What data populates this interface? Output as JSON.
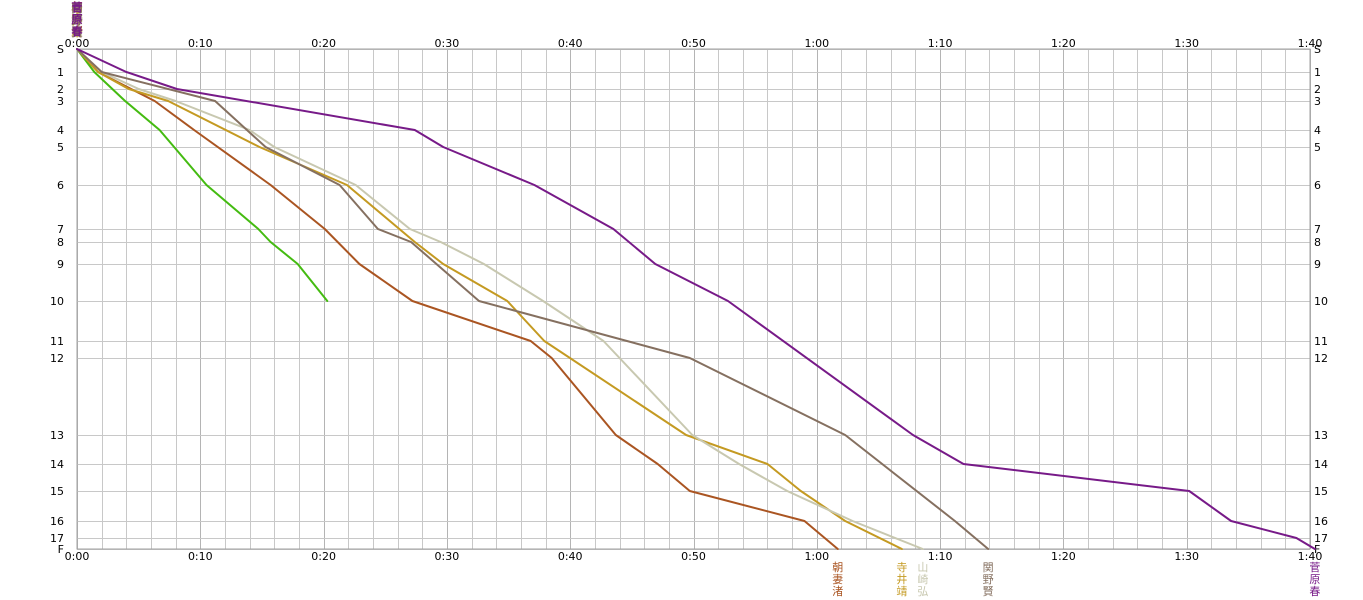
{
  "chart_data": {
    "type": "line",
    "title": "",
    "xlabel": "",
    "ylabel": "",
    "xlim": [
      0,
      100
    ],
    "ylim": [
      0,
      18
    ],
    "x_ticks": [
      {
        "v": 0,
        "label": "0:00"
      },
      {
        "v": 10,
        "label": "0:10"
      },
      {
        "v": 20,
        "label": "0:20"
      },
      {
        "v": 30,
        "label": "0:30"
      },
      {
        "v": 40,
        "label": "0:40"
      },
      {
        "v": 50,
        "label": "0:50"
      },
      {
        "v": 60,
        "label": "1:00"
      },
      {
        "v": 70,
        "label": "1:10"
      },
      {
        "v": 80,
        "label": "1:20"
      },
      {
        "v": 90,
        "label": "1:30"
      },
      {
        "v": 100,
        "label": "1:40"
      }
    ],
    "controls": [
      {
        "label": "S",
        "y": 0
      },
      {
        "label": "1",
        "y": 1
      },
      {
        "label": "2",
        "y": 2
      },
      {
        "label": "3",
        "y": 3
      },
      {
        "label": "4",
        "y": 4
      },
      {
        "label": "5",
        "y": 5
      },
      {
        "label": "6",
        "y": 6
      },
      {
        "label": "7",
        "y": 7
      },
      {
        "label": "8",
        "y": 8
      },
      {
        "label": "9",
        "y": 9
      },
      {
        "label": "10",
        "y": 10
      },
      {
        "label": "11",
        "y": 11
      },
      {
        "label": "12",
        "y": 12
      },
      {
        "label": "13",
        "y": 13
      },
      {
        "label": "14",
        "y": 14
      },
      {
        "label": "15",
        "y": 15
      },
      {
        "label": "16",
        "y": 16
      },
      {
        "label": "17",
        "y": 17
      },
      {
        "label": "F",
        "y": 18
      }
    ],
    "leg_x_start": 0,
    "series": [
      {
        "name": "",
        "color": "#44bb11",
        "end_label": "",
        "x": [
          0,
          1.4,
          3.9,
          6.7,
          10.5,
          14.7,
          15.7,
          17.9,
          20.3
        ],
        "y": [
          0,
          1,
          3,
          4,
          6,
          7,
          8,
          9,
          10
        ]
      },
      {
        "name": "朝妻渚",
        "color": "#aa5522",
        "end_label": "朝妻渚",
        "x": [
          0,
          1.7,
          6.3,
          9.5,
          15.7,
          20.1,
          22.9,
          27.2,
          36.8,
          38.5,
          43.7,
          47.1,
          49.7,
          59,
          61.7
        ],
        "y": [
          0,
          1,
          3,
          4,
          6,
          7,
          9,
          10,
          11,
          12,
          13,
          14,
          15,
          16,
          18
        ]
      },
      {
        "name": "寺井靖",
        "color": "#c49a22",
        "end_label": "寺井靖",
        "x": [
          0,
          1.7,
          4.2,
          7.4,
          14.8,
          21.9,
          27.4,
          29.7,
          34.9,
          37.9,
          49.4,
          56,
          58.7,
          62.3,
          66.9
        ],
        "y": [
          0,
          1,
          2,
          3,
          5,
          6,
          8,
          9,
          10,
          11,
          13,
          14,
          15,
          16,
          18
        ]
      },
      {
        "name": "山崎弘",
        "color": "#c8c8b0",
        "end_label": "山崎弘",
        "x": [
          0,
          2,
          5,
          8,
          14,
          16,
          22.6,
          27,
          29.5,
          33,
          37.8,
          42.7,
          49.9,
          53.7,
          57.6,
          62.9,
          68.6
        ],
        "y": [
          0,
          1,
          2,
          3,
          4,
          5,
          6,
          7,
          8,
          9,
          10,
          11,
          13,
          14,
          15,
          16,
          18
        ]
      },
      {
        "name": "関野賢",
        "color": "#857060",
        "end_label": "関野賢",
        "x": [
          0,
          2,
          11.2,
          15.3,
          21.3,
          24.4,
          27.1,
          32.6,
          49.7,
          62.3,
          71.2,
          73.9
        ],
        "y": [
          0,
          1,
          3,
          5,
          6,
          7,
          8,
          10,
          12,
          13,
          16,
          18
        ]
      },
      {
        "name": "菅原春",
        "color": "#771a88",
        "end_label": "菅原春",
        "x": [
          0,
          4,
          8.1,
          27.4,
          29.7,
          37.1,
          43.5,
          46.9,
          52.8,
          67.8,
          71.9,
          90.2,
          93.6,
          98.9,
          100.4
        ],
        "y": [
          0,
          1,
          2,
          4,
          5,
          6,
          7,
          9,
          10,
          13,
          14,
          15,
          16,
          17,
          18
        ]
      }
    ]
  }
}
